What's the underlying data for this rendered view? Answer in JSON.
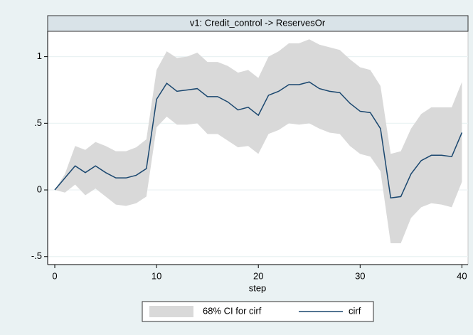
{
  "chart_data": {
    "type": "line",
    "title": "v1: Credit_control -> ReservesOr",
    "x_label": "step",
    "x": [
      0,
      1,
      2,
      3,
      4,
      5,
      6,
      7,
      8,
      9,
      10,
      11,
      12,
      13,
      14,
      15,
      16,
      17,
      18,
      19,
      20,
      21,
      22,
      23,
      24,
      25,
      26,
      27,
      28,
      29,
      30,
      31,
      32,
      33,
      34,
      35,
      36,
      37,
      38,
      39,
      40
    ],
    "series": [
      {
        "name": "68% CI for cirf",
        "type": "band",
        "color": "#d9d9d9",
        "upper": [
          0,
          0.12,
          0.33,
          0.3,
          0.36,
          0.33,
          0.29,
          0.29,
          0.32,
          0.38,
          0.9,
          1.04,
          0.99,
          1.0,
          1.03,
          0.96,
          0.96,
          0.93,
          0.88,
          0.9,
          0.84,
          1.0,
          1.04,
          1.1,
          1.1,
          1.13,
          1.09,
          1.07,
          1.05,
          0.98,
          0.92,
          0.9,
          0.78,
          0.27,
          0.29,
          0.46,
          0.57,
          0.62,
          0.62,
          0.62,
          0.81
        ],
        "lower": [
          0,
          -0.02,
          0.04,
          -0.04,
          0.01,
          -0.05,
          -0.11,
          -0.12,
          -0.1,
          -0.05,
          0.47,
          0.55,
          0.49,
          0.49,
          0.5,
          0.42,
          0.42,
          0.37,
          0.32,
          0.33,
          0.27,
          0.42,
          0.45,
          0.5,
          0.49,
          0.5,
          0.46,
          0.43,
          0.42,
          0.33,
          0.27,
          0.25,
          0.14,
          -0.4,
          -0.4,
          -0.21,
          -0.13,
          -0.1,
          -0.11,
          -0.13,
          0.06
        ]
      },
      {
        "name": "cirf",
        "type": "line",
        "color": "#1a476f",
        "values": [
          0,
          0.09,
          0.18,
          0.13,
          0.18,
          0.13,
          0.09,
          0.09,
          0.11,
          0.16,
          0.68,
          0.8,
          0.74,
          0.75,
          0.76,
          0.7,
          0.7,
          0.66,
          0.6,
          0.62,
          0.56,
          0.71,
          0.74,
          0.79,
          0.79,
          0.81,
          0.76,
          0.74,
          0.73,
          0.65,
          0.59,
          0.58,
          0.46,
          -0.06,
          -0.05,
          0.12,
          0.22,
          0.26,
          0.26,
          0.25,
          0.43
        ]
      }
    ],
    "xlim": [
      -0.7,
      40.6
    ],
    "ylim": [
      -0.56,
      1.19
    ],
    "xticks": [
      0,
      10,
      20,
      30,
      40
    ],
    "yticks": [
      {
        "value": -0.5,
        "label": "-.5"
      },
      0,
      {
        "value": 0.5,
        "label": ".5"
      },
      1
    ],
    "grid": true
  }
}
